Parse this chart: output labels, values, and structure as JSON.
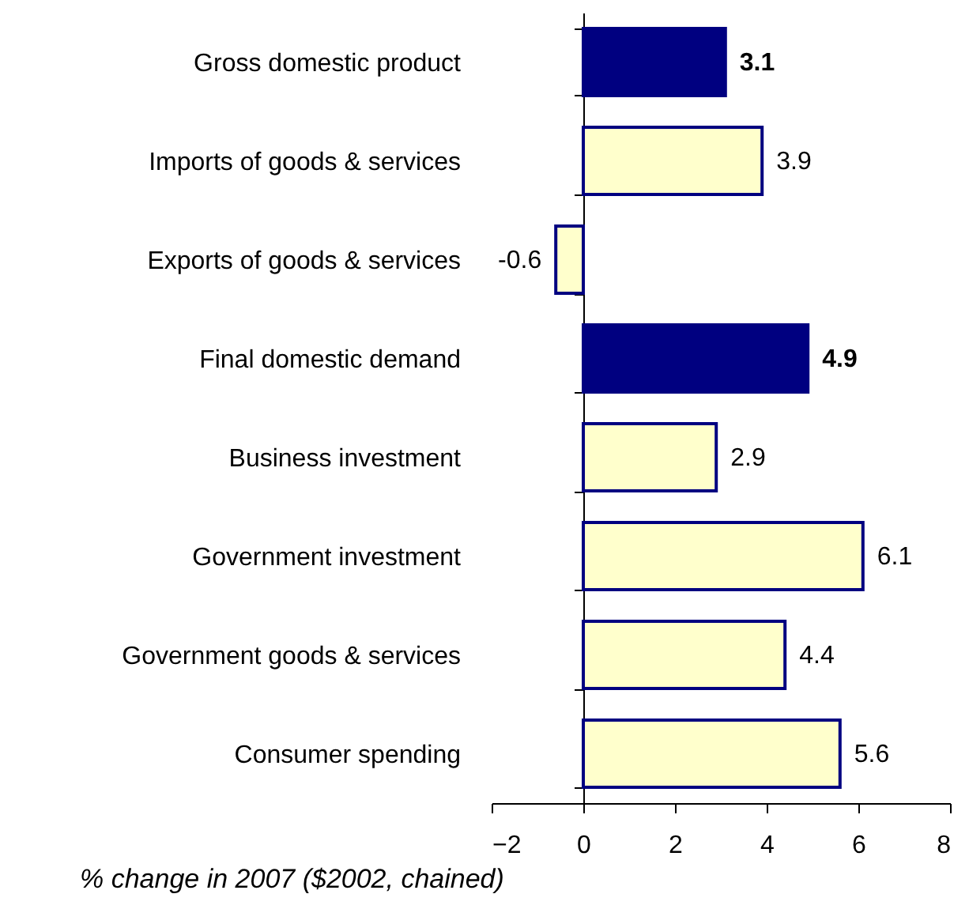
{
  "chart_data": {
    "type": "bar",
    "orientation": "horizontal",
    "categories": [
      "Gross domestic product",
      "Imports of goods & services",
      "Exports of goods & services",
      "Final domestic demand",
      "Business investment",
      "Government investment",
      "Government goods & services",
      "Consumer spending"
    ],
    "values": [
      3.1,
      3.9,
      -0.6,
      4.9,
      2.9,
      6.1,
      4.4,
      5.6
    ],
    "colors": [
      "#000080",
      "#ffffcc",
      "#ffffcc",
      "#000080",
      "#ffffcc",
      "#ffffcc",
      "#ffffcc",
      "#ffffcc"
    ],
    "xlim": [
      -2,
      8
    ],
    "xticks": [
      -2,
      0,
      2,
      4,
      6,
      8
    ],
    "xlabel": "% change in 2007 ($2002, chained)",
    "data_labels": true
  }
}
